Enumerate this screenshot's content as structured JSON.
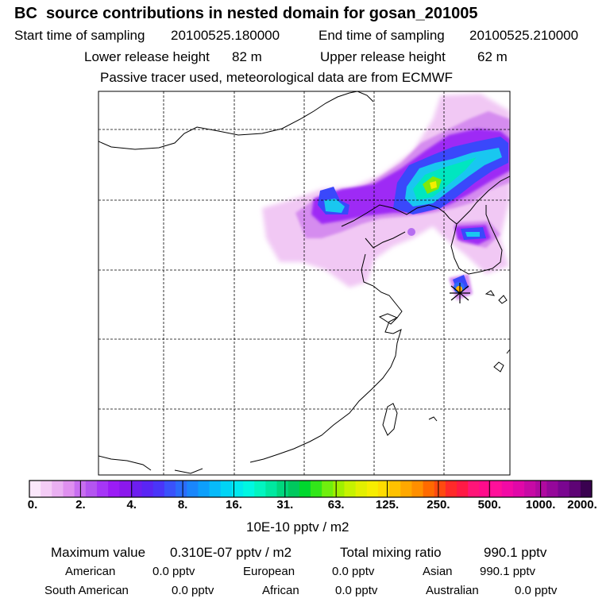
{
  "header": {
    "title": "BC  source contributions in nested domain for gosan_201005",
    "start_label": "Start time of sampling",
    "start_value": "20100525.180000",
    "end_label": "End time of sampling",
    "end_value": "20100525.210000",
    "lower_label": "Lower release height",
    "lower_value": "82 m",
    "upper_label": "Upper release height",
    "upper_value": "62 m",
    "tracer_note": "Passive tracer used, meteorological data are from ECMWF"
  },
  "colorbar": {
    "ticks": [
      "0.",
      "2.",
      "4.",
      "8.",
      "16.",
      "31.",
      "63.",
      "125.",
      "250.",
      "500.",
      "1000.",
      "2000."
    ],
    "unit": "10E-10 pptv / m2",
    "colors": [
      "#fbe8fb",
      "#f4ccf6",
      "#eab0f2",
      "#df90ef",
      "#c86ef0",
      "#b455f0",
      "#a636f7",
      "#9b1cf5",
      "#8b18ec",
      "#6d1ef0",
      "#5a25f4",
      "#4a35f9",
      "#3a52fb",
      "#2b6cfc",
      "#1a86fb",
      "#0d9ffb",
      "#07bafa",
      "#00d4f5",
      "#00e9ef",
      "#00f7e2",
      "#02f5c0",
      "#00e8a0",
      "#00d77d",
      "#00c85e",
      "#00d72e",
      "#32e619",
      "#70ef0e",
      "#a0f000",
      "#c6f200",
      "#e3ef00",
      "#f7ed00",
      "#ffdc00",
      "#ffc200",
      "#ffa800",
      "#ff8f00",
      "#ff6a00",
      "#ff4a10",
      "#ff2a2a",
      "#ff1a45",
      "#ff1578",
      "#ff0b8b",
      "#ff109a",
      "#f20aa5",
      "#e008a8",
      "#c70aa5",
      "#b00aa0",
      "#95089a",
      "#7a0690",
      "#5e0475",
      "#3a0250"
    ]
  },
  "stats": {
    "max_label": "Maximum value",
    "max_value": "0.310E-07 pptv / m2",
    "total_label": "Total mixing ratio",
    "total_value": "990.1 pptv",
    "regions": [
      {
        "name": "American",
        "value": "0.0 pptv"
      },
      {
        "name": "European",
        "value": "0.0 pptv"
      },
      {
        "name": "Asian",
        "value": "990.1 pptv"
      },
      {
        "name": "South American",
        "value": "0.0 pptv"
      },
      {
        "name": "African",
        "value": "0.0 pptv"
      },
      {
        "name": "Australian",
        "value": "0.0 pptv"
      }
    ]
  }
}
